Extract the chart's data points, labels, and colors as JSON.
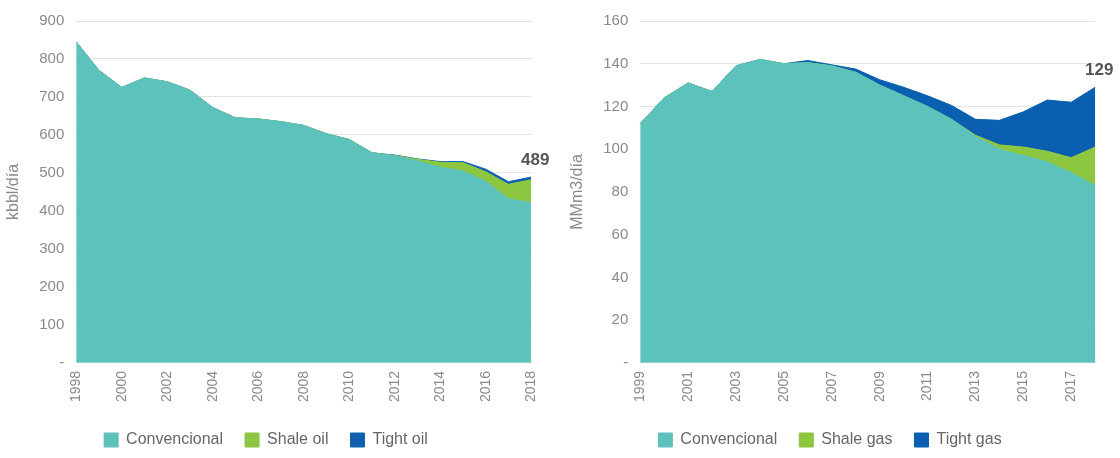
{
  "chart_data": [
    {
      "type": "area",
      "ylabel": "kbbl/día",
      "categories": [
        "1998",
        null,
        "2000",
        null,
        "2002",
        null,
        "2004",
        null,
        "2006",
        null,
        "2008",
        null,
        "2010",
        null,
        "2012",
        null,
        "2014",
        null,
        "2016",
        null,
        "2018"
      ],
      "stacked": true,
      "series": [
        {
          "name": "Convencional",
          "color": "#5cc2bb",
          "values": [
            845,
            770,
            725,
            750,
            740,
            718,
            672,
            645,
            642,
            635,
            625,
            603,
            588,
            553,
            545,
            532,
            515,
            505,
            478,
            432,
            422
          ]
        },
        {
          "name": "Shale oil",
          "color": "#8dc63f",
          "values": [
            0,
            0,
            0,
            0,
            0,
            0,
            0,
            0,
            0,
            0,
            0,
            0,
            0,
            0,
            1,
            4,
            13,
            22,
            25,
            38,
            60
          ]
        },
        {
          "name": "Tight oil",
          "color": "#1060b0",
          "values": [
            0,
            0,
            0,
            0,
            0,
            0,
            0,
            0,
            0,
            0,
            0,
            0,
            0,
            0,
            1,
            1,
            2,
            3,
            7,
            7,
            7
          ]
        }
      ],
      "ylim": [
        0,
        900
      ],
      "yticks": [
        {
          "value": 0,
          "label": "-"
        },
        100,
        200,
        300,
        400,
        500,
        600,
        700,
        800,
        900
      ],
      "grid": "y",
      "legend": "bottom",
      "annotations": [
        {
          "text": "489",
          "x": "2018",
          "y": 489
        }
      ]
    },
    {
      "type": "area",
      "ylabel": "MMm3/día",
      "categories": [
        "1999",
        null,
        "2001",
        null,
        "2003",
        null,
        "2005",
        null,
        "2007",
        null,
        "2009",
        null,
        "2011",
        null,
        "2013",
        null,
        "2015",
        null,
        "2017",
        null
      ],
      "stacked": true,
      "series": [
        {
          "name": "Convencional",
          "color": "#5cc2bb",
          "values": [
            112,
            124,
            131,
            127,
            139,
            142,
            140,
            140.5,
            139,
            136,
            130,
            125,
            120,
            114,
            106,
            100,
            97,
            94,
            89,
            83
          ]
        },
        {
          "name": "Shale gas",
          "color": "#8dc63f",
          "values": [
            0,
            0,
            0,
            0,
            0,
            0,
            0,
            0,
            0,
            0,
            0,
            0,
            0,
            0,
            0.5,
            2,
            4,
            5,
            7,
            18
          ]
        },
        {
          "name": "Tight gas",
          "color": "#0a5fb0",
          "values": [
            0,
            0,
            0,
            0,
            0,
            0,
            0,
            1,
            0.5,
            1.5,
            2.5,
            4,
            5,
            6.5,
            7.5,
            11.5,
            16.5,
            24,
            26,
            28
          ]
        }
      ],
      "ylim": [
        0,
        160
      ],
      "yticks": [
        {
          "value": 0,
          "label": "-"
        },
        20,
        40,
        60,
        80,
        100,
        120,
        140,
        160
      ],
      "grid": "y",
      "legend": "bottom",
      "annotations": [
        {
          "text": "129",
          "y": 129
        }
      ]
    }
  ]
}
